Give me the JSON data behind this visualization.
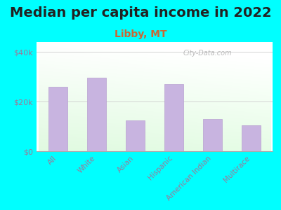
{
  "title": "Median per capita income in 2022",
  "subtitle": "Libby, MT",
  "categories": [
    "All",
    "White",
    "Asian",
    "Hispanic",
    "American Indian",
    "Multirace"
  ],
  "values": [
    26000,
    29500,
    12500,
    27000,
    13000,
    10500
  ],
  "bar_color": "#c8b4e0",
  "bar_edge_color": "#b8a0d0",
  "background_color": "#00ffff",
  "yticks": [
    0,
    20000,
    40000
  ],
  "ytick_labels": [
    "$0",
    "$20k",
    "$40k"
  ],
  "ylim": [
    0,
    44000
  ],
  "title_fontsize": 14,
  "subtitle_fontsize": 10,
  "watermark": "City-Data.com",
  "tick_color": "#9a7a9a",
  "title_color": "#222222",
  "subtitle_color": "#cc6633",
  "watermark_color": "#aaaaaa",
  "grid_color": "#cccccc",
  "bottom_spine_color": "#aaaaaa"
}
